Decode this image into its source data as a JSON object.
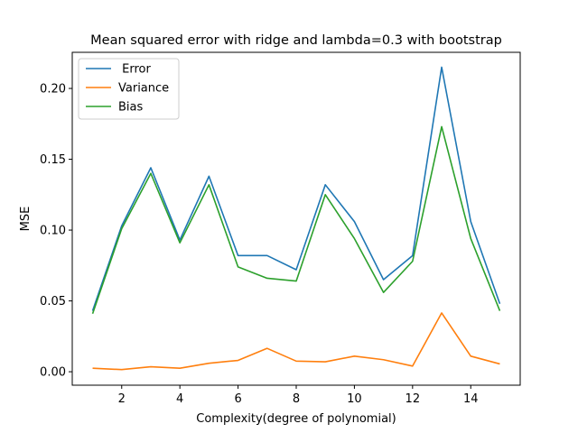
{
  "chart_data": {
    "type": "line",
    "title": "Mean squared error with ridge and lambda=0.3 with bootstrap",
    "xlabel": "Complexity(degree of polynomial)",
    "ylabel": "MSE",
    "xlim": [
      0.3,
      15.7
    ],
    "ylim": [
      -0.0095,
      0.2255
    ],
    "xticks": [
      2,
      4,
      6,
      8,
      10,
      12,
      14
    ],
    "yticks": [
      0.0,
      0.05,
      0.1,
      0.15,
      0.2
    ],
    "ytick_labels": [
      "0.00",
      "0.05",
      "0.10",
      "0.15",
      "0.20"
    ],
    "grid": false,
    "legend_position": "top-left",
    "x": [
      1,
      2,
      3,
      4,
      5,
      6,
      7,
      8,
      9,
      10,
      11,
      12,
      13,
      14,
      15
    ],
    "series": [
      {
        "name": " Error",
        "color": "#1f77b4",
        "values": [
          0.043,
          0.103,
          0.144,
          0.093,
          0.138,
          0.082,
          0.082,
          0.072,
          0.132,
          0.106,
          0.065,
          0.082,
          0.215,
          0.106,
          0.048
        ]
      },
      {
        "name": "Variance",
        "color": "#ff7f0e",
        "values": [
          0.0025,
          0.0015,
          0.0035,
          0.0025,
          0.006,
          0.008,
          0.0165,
          0.0075,
          0.007,
          0.011,
          0.0085,
          0.004,
          0.0415,
          0.011,
          0.0055
        ]
      },
      {
        "name": "Bias",
        "color": "#2ca02c",
        "values": [
          0.041,
          0.101,
          0.14,
          0.091,
          0.132,
          0.074,
          0.066,
          0.064,
          0.125,
          0.094,
          0.056,
          0.078,
          0.173,
          0.094,
          0.043
        ]
      }
    ]
  }
}
